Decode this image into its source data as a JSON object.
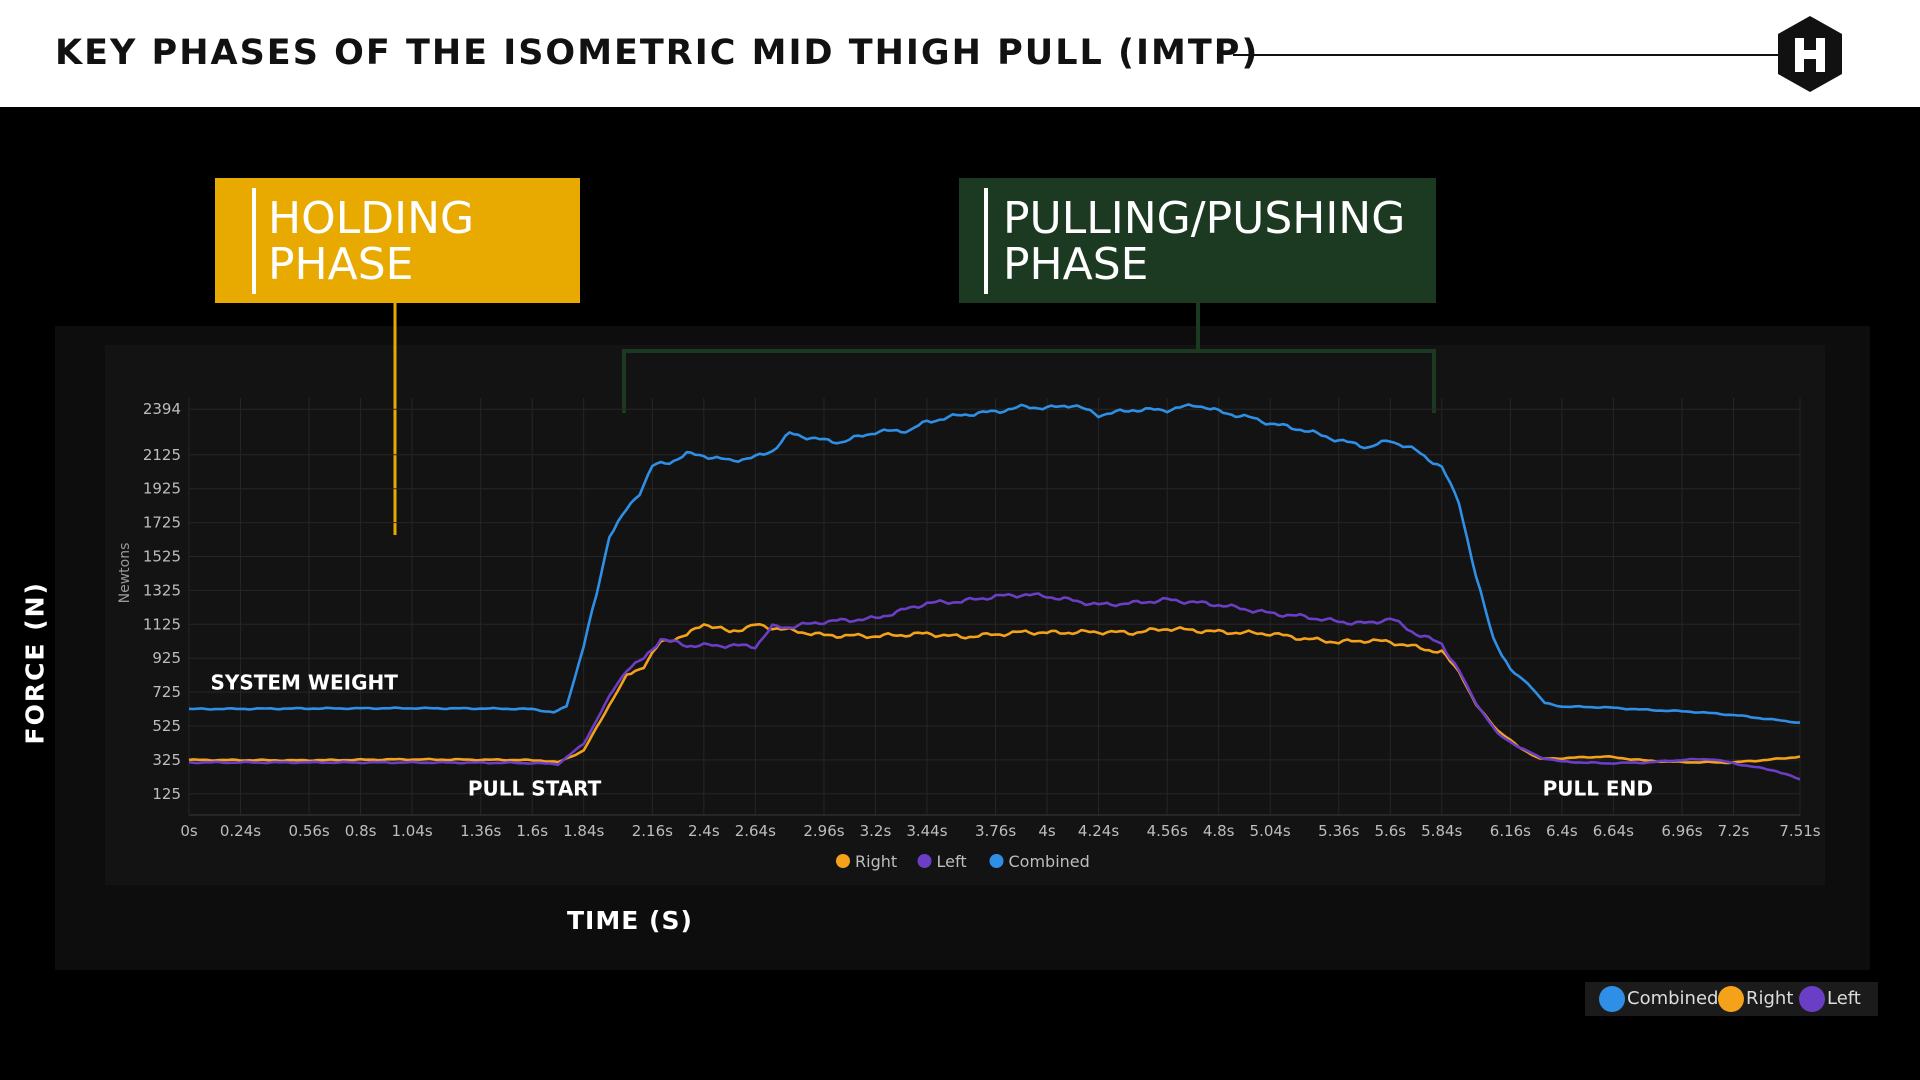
{
  "title": "KEY PHASES OF THE ISOMETRIC MID THIGH PULL (IMTP)",
  "logo": "hexagon-h-logo",
  "phases": {
    "holding": {
      "line1": "HOLDING",
      "line2": "PHASE",
      "color": "#E8AA00"
    },
    "pulling": {
      "line1": "PULLING/PUSHING",
      "line2": "PHASE",
      "color": "#1C3A22"
    }
  },
  "axis_titles": {
    "y": "FORCE (N)",
    "x": "TIME (S)"
  },
  "legend_bottom": [
    "Combined",
    "Right",
    "Left"
  ],
  "chart_data": {
    "type": "line",
    "ylabel": "Newtons",
    "y_ticks": [
      2394,
      2125,
      1925,
      1725,
      1525,
      1325,
      1125,
      925,
      725,
      525,
      325,
      125
    ],
    "x_ticks": [
      {
        "t": 0,
        "label": "0s"
      },
      {
        "t": 0.24,
        "label": "0.24s"
      },
      {
        "t": 0.56,
        "label": "0.56s"
      },
      {
        "t": 0.8,
        "label": "0.8s"
      },
      {
        "t": 1.04,
        "label": "1.04s"
      },
      {
        "t": 1.36,
        "label": "1.36s"
      },
      {
        "t": 1.6,
        "label": "1.6s"
      },
      {
        "t": 1.84,
        "label": "1.84s"
      },
      {
        "t": 2.16,
        "label": "2.16s"
      },
      {
        "t": 2.4,
        "label": "2.4s"
      },
      {
        "t": 2.64,
        "label": "2.64s"
      },
      {
        "t": 2.96,
        "label": "2.96s"
      },
      {
        "t": 3.2,
        "label": "3.2s"
      },
      {
        "t": 3.44,
        "label": "3.44s"
      },
      {
        "t": 3.76,
        "label": "3.76s"
      },
      {
        "t": 4.0,
        "label": "4s"
      },
      {
        "t": 4.24,
        "label": "4.24s"
      },
      {
        "t": 4.56,
        "label": "4.56s"
      },
      {
        "t": 4.8,
        "label": "4.8s"
      },
      {
        "t": 5.04,
        "label": "5.04s"
      },
      {
        "t": 5.36,
        "label": "5.36s"
      },
      {
        "t": 5.6,
        "label": "5.6s"
      },
      {
        "t": 5.84,
        "label": "5.84s"
      },
      {
        "t": 6.16,
        "label": "6.16s"
      },
      {
        "t": 6.4,
        "label": "6.4s"
      },
      {
        "t": 6.64,
        "label": "6.64s"
      },
      {
        "t": 6.96,
        "label": "6.96s"
      },
      {
        "t": 7.2,
        "label": "7.2s"
      },
      {
        "t": 7.51,
        "label": "7.51s"
      }
    ],
    "xlim": [
      0,
      7.51
    ],
    "ylim": [
      0,
      2460
    ],
    "grid": true,
    "legend_position": "bottom-center",
    "series": [
      {
        "name": "Right",
        "color": "#F5A21B",
        "points": [
          [
            0,
            325
          ],
          [
            0.5,
            322
          ],
          [
            1.0,
            328
          ],
          [
            1.5,
            325
          ],
          [
            1.64,
            322
          ],
          [
            1.72,
            310
          ],
          [
            1.84,
            380
          ],
          [
            1.96,
            650
          ],
          [
            2.04,
            820
          ],
          [
            2.12,
            880
          ],
          [
            2.2,
            1020
          ],
          [
            2.32,
            1060
          ],
          [
            2.4,
            1130
          ],
          [
            2.52,
            1080
          ],
          [
            2.64,
            1120
          ],
          [
            2.8,
            1090
          ],
          [
            2.96,
            1060
          ],
          [
            3.2,
            1055
          ],
          [
            3.44,
            1070
          ],
          [
            3.6,
            1050
          ],
          [
            3.76,
            1065
          ],
          [
            3.9,
            1080
          ],
          [
            4.0,
            1075
          ],
          [
            4.24,
            1080
          ],
          [
            4.4,
            1075
          ],
          [
            4.56,
            1100
          ],
          [
            4.8,
            1080
          ],
          [
            5.04,
            1070
          ],
          [
            5.2,
            1040
          ],
          [
            5.36,
            1020
          ],
          [
            5.5,
            1030
          ],
          [
            5.6,
            1020
          ],
          [
            5.72,
            990
          ],
          [
            5.84,
            960
          ],
          [
            5.92,
            850
          ],
          [
            6.0,
            650
          ],
          [
            6.1,
            500
          ],
          [
            6.2,
            400
          ],
          [
            6.3,
            330
          ],
          [
            6.4,
            335
          ],
          [
            6.6,
            345
          ],
          [
            6.8,
            320
          ],
          [
            6.96,
            312
          ],
          [
            7.2,
            310
          ],
          [
            7.4,
            330
          ],
          [
            7.51,
            345
          ]
        ]
      },
      {
        "name": "Left",
        "color": "#6A3EC5",
        "points": [
          [
            0,
            310
          ],
          [
            0.5,
            310
          ],
          [
            1.0,
            310
          ],
          [
            1.5,
            308
          ],
          [
            1.64,
            305
          ],
          [
            1.72,
            300
          ],
          [
            1.84,
            420
          ],
          [
            1.96,
            700
          ],
          [
            2.04,
            860
          ],
          [
            2.12,
            920
          ],
          [
            2.2,
            1040
          ],
          [
            2.32,
            1000
          ],
          [
            2.4,
            1000
          ],
          [
            2.52,
            1000
          ],
          [
            2.64,
            995
          ],
          [
            2.72,
            1110
          ],
          [
            2.8,
            1110
          ],
          [
            2.96,
            1140
          ],
          [
            3.2,
            1160
          ],
          [
            3.44,
            1250
          ],
          [
            3.6,
            1260
          ],
          [
            3.76,
            1290
          ],
          [
            3.9,
            1300
          ],
          [
            4.0,
            1290
          ],
          [
            4.24,
            1240
          ],
          [
            4.4,
            1250
          ],
          [
            4.56,
            1270
          ],
          [
            4.8,
            1240
          ],
          [
            5.04,
            1190
          ],
          [
            5.2,
            1170
          ],
          [
            5.36,
            1140
          ],
          [
            5.5,
            1130
          ],
          [
            5.6,
            1160
          ],
          [
            5.72,
            1070
          ],
          [
            5.84,
            1010
          ],
          [
            5.92,
            850
          ],
          [
            6.0,
            660
          ],
          [
            6.1,
            480
          ],
          [
            6.2,
            400
          ],
          [
            6.3,
            340
          ],
          [
            6.4,
            315
          ],
          [
            6.6,
            305
          ],
          [
            6.8,
            310
          ],
          [
            6.96,
            325
          ],
          [
            7.1,
            330
          ],
          [
            7.2,
            305
          ],
          [
            7.4,
            260
          ],
          [
            7.51,
            210
          ]
        ]
      },
      {
        "name": "Combined",
        "color": "#2F8FE6",
        "points": [
          [
            0,
            625
          ],
          [
            0.5,
            628
          ],
          [
            1.0,
            630
          ],
          [
            1.4,
            628
          ],
          [
            1.6,
            625
          ],
          [
            1.7,
            605
          ],
          [
            1.76,
            640
          ],
          [
            1.84,
            1000
          ],
          [
            1.9,
            1300
          ],
          [
            1.96,
            1650
          ],
          [
            2.04,
            1800
          ],
          [
            2.1,
            1900
          ],
          [
            2.16,
            2060
          ],
          [
            2.24,
            2080
          ],
          [
            2.32,
            2130
          ],
          [
            2.4,
            2120
          ],
          [
            2.52,
            2090
          ],
          [
            2.64,
            2110
          ],
          [
            2.72,
            2150
          ],
          [
            2.8,
            2250
          ],
          [
            2.96,
            2210
          ],
          [
            3.04,
            2200
          ],
          [
            3.2,
            2260
          ],
          [
            3.36,
            2270
          ],
          [
            3.44,
            2320
          ],
          [
            3.6,
            2360
          ],
          [
            3.76,
            2380
          ],
          [
            3.9,
            2410
          ],
          [
            4.0,
            2400
          ],
          [
            4.12,
            2420
          ],
          [
            4.24,
            2360
          ],
          [
            4.4,
            2390
          ],
          [
            4.56,
            2390
          ],
          [
            4.7,
            2420
          ],
          [
            4.8,
            2380
          ],
          [
            4.96,
            2340
          ],
          [
            5.04,
            2310
          ],
          [
            5.2,
            2270
          ],
          [
            5.36,
            2210
          ],
          [
            5.5,
            2170
          ],
          [
            5.6,
            2210
          ],
          [
            5.72,
            2150
          ],
          [
            5.84,
            2050
          ],
          [
            5.92,
            1850
          ],
          [
            6.0,
            1400
          ],
          [
            6.08,
            1050
          ],
          [
            6.16,
            850
          ],
          [
            6.24,
            780
          ],
          [
            6.32,
            660
          ],
          [
            6.4,
            640
          ],
          [
            6.6,
            635
          ],
          [
            6.8,
            620
          ],
          [
            7.0,
            610
          ],
          [
            7.2,
            590
          ],
          [
            7.4,
            560
          ],
          [
            7.51,
            545
          ]
        ]
      }
    ],
    "annotations": [
      {
        "text": "SYSTEM WEIGHT",
        "t": 0.1,
        "value": 740
      },
      {
        "text": "PULL START",
        "t": 1.3,
        "value": 115
      },
      {
        "text": "PULL END",
        "t": 6.31,
        "value": 115
      }
    ]
  }
}
